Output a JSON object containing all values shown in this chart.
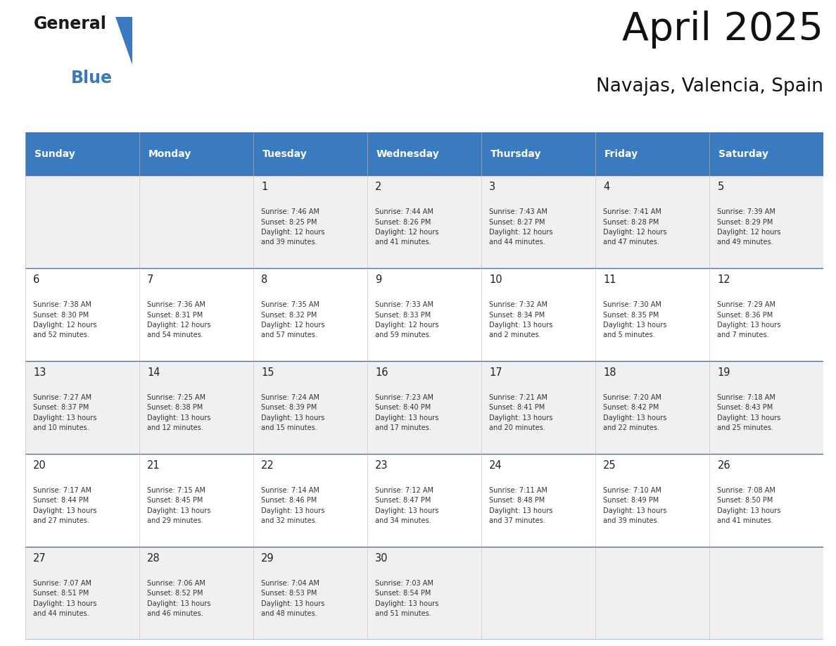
{
  "title": "April 2025",
  "subtitle": "Navajas, Valencia, Spain",
  "header_color": "#3a7bbf",
  "header_text_color": "#ffffff",
  "weekdays": [
    "Sunday",
    "Monday",
    "Tuesday",
    "Wednesday",
    "Thursday",
    "Friday",
    "Saturday"
  ],
  "bg_color": "#ffffff",
  "row_colors": [
    "#f0f0f0",
    "#ffffff",
    "#f0f0f0",
    "#ffffff",
    "#f0f0f0"
  ],
  "cell_text_color": "#333333",
  "border_color": "#4472a8",
  "days": [
    {
      "day": null,
      "info": null
    },
    {
      "day": null,
      "info": null
    },
    {
      "day": "1",
      "info": "Sunrise: 7:46 AM\nSunset: 8:25 PM\nDaylight: 12 hours\nand 39 minutes."
    },
    {
      "day": "2",
      "info": "Sunrise: 7:44 AM\nSunset: 8:26 PM\nDaylight: 12 hours\nand 41 minutes."
    },
    {
      "day": "3",
      "info": "Sunrise: 7:43 AM\nSunset: 8:27 PM\nDaylight: 12 hours\nand 44 minutes."
    },
    {
      "day": "4",
      "info": "Sunrise: 7:41 AM\nSunset: 8:28 PM\nDaylight: 12 hours\nand 47 minutes."
    },
    {
      "day": "5",
      "info": "Sunrise: 7:39 AM\nSunset: 8:29 PM\nDaylight: 12 hours\nand 49 minutes."
    },
    {
      "day": "6",
      "info": "Sunrise: 7:38 AM\nSunset: 8:30 PM\nDaylight: 12 hours\nand 52 minutes."
    },
    {
      "day": "7",
      "info": "Sunrise: 7:36 AM\nSunset: 8:31 PM\nDaylight: 12 hours\nand 54 minutes."
    },
    {
      "day": "8",
      "info": "Sunrise: 7:35 AM\nSunset: 8:32 PM\nDaylight: 12 hours\nand 57 minutes."
    },
    {
      "day": "9",
      "info": "Sunrise: 7:33 AM\nSunset: 8:33 PM\nDaylight: 12 hours\nand 59 minutes."
    },
    {
      "day": "10",
      "info": "Sunrise: 7:32 AM\nSunset: 8:34 PM\nDaylight: 13 hours\nand 2 minutes."
    },
    {
      "day": "11",
      "info": "Sunrise: 7:30 AM\nSunset: 8:35 PM\nDaylight: 13 hours\nand 5 minutes."
    },
    {
      "day": "12",
      "info": "Sunrise: 7:29 AM\nSunset: 8:36 PM\nDaylight: 13 hours\nand 7 minutes."
    },
    {
      "day": "13",
      "info": "Sunrise: 7:27 AM\nSunset: 8:37 PM\nDaylight: 13 hours\nand 10 minutes."
    },
    {
      "day": "14",
      "info": "Sunrise: 7:25 AM\nSunset: 8:38 PM\nDaylight: 13 hours\nand 12 minutes."
    },
    {
      "day": "15",
      "info": "Sunrise: 7:24 AM\nSunset: 8:39 PM\nDaylight: 13 hours\nand 15 minutes."
    },
    {
      "day": "16",
      "info": "Sunrise: 7:23 AM\nSunset: 8:40 PM\nDaylight: 13 hours\nand 17 minutes."
    },
    {
      "day": "17",
      "info": "Sunrise: 7:21 AM\nSunset: 8:41 PM\nDaylight: 13 hours\nand 20 minutes."
    },
    {
      "day": "18",
      "info": "Sunrise: 7:20 AM\nSunset: 8:42 PM\nDaylight: 13 hours\nand 22 minutes."
    },
    {
      "day": "19",
      "info": "Sunrise: 7:18 AM\nSunset: 8:43 PM\nDaylight: 13 hours\nand 25 minutes."
    },
    {
      "day": "20",
      "info": "Sunrise: 7:17 AM\nSunset: 8:44 PM\nDaylight: 13 hours\nand 27 minutes."
    },
    {
      "day": "21",
      "info": "Sunrise: 7:15 AM\nSunset: 8:45 PM\nDaylight: 13 hours\nand 29 minutes."
    },
    {
      "day": "22",
      "info": "Sunrise: 7:14 AM\nSunset: 8:46 PM\nDaylight: 13 hours\nand 32 minutes."
    },
    {
      "day": "23",
      "info": "Sunrise: 7:12 AM\nSunset: 8:47 PM\nDaylight: 13 hours\nand 34 minutes."
    },
    {
      "day": "24",
      "info": "Sunrise: 7:11 AM\nSunset: 8:48 PM\nDaylight: 13 hours\nand 37 minutes."
    },
    {
      "day": "25",
      "info": "Sunrise: 7:10 AM\nSunset: 8:49 PM\nDaylight: 13 hours\nand 39 minutes."
    },
    {
      "day": "26",
      "info": "Sunrise: 7:08 AM\nSunset: 8:50 PM\nDaylight: 13 hours\nand 41 minutes."
    },
    {
      "day": "27",
      "info": "Sunrise: 7:07 AM\nSunset: 8:51 PM\nDaylight: 13 hours\nand 44 minutes."
    },
    {
      "day": "28",
      "info": "Sunrise: 7:06 AM\nSunset: 8:52 PM\nDaylight: 13 hours\nand 46 minutes."
    },
    {
      "day": "29",
      "info": "Sunrise: 7:04 AM\nSunset: 8:53 PM\nDaylight: 13 hours\nand 48 minutes."
    },
    {
      "day": "30",
      "info": "Sunrise: 7:03 AM\nSunset: 8:54 PM\nDaylight: 13 hours\nand 51 minutes."
    },
    {
      "day": null,
      "info": null
    },
    {
      "day": null,
      "info": null
    },
    {
      "day": null,
      "info": null
    }
  ],
  "logo_general_color": "#1a1a1a",
  "logo_blue_color": "#3a7bbf",
  "logo_triangle_color": "#3a7bbf"
}
